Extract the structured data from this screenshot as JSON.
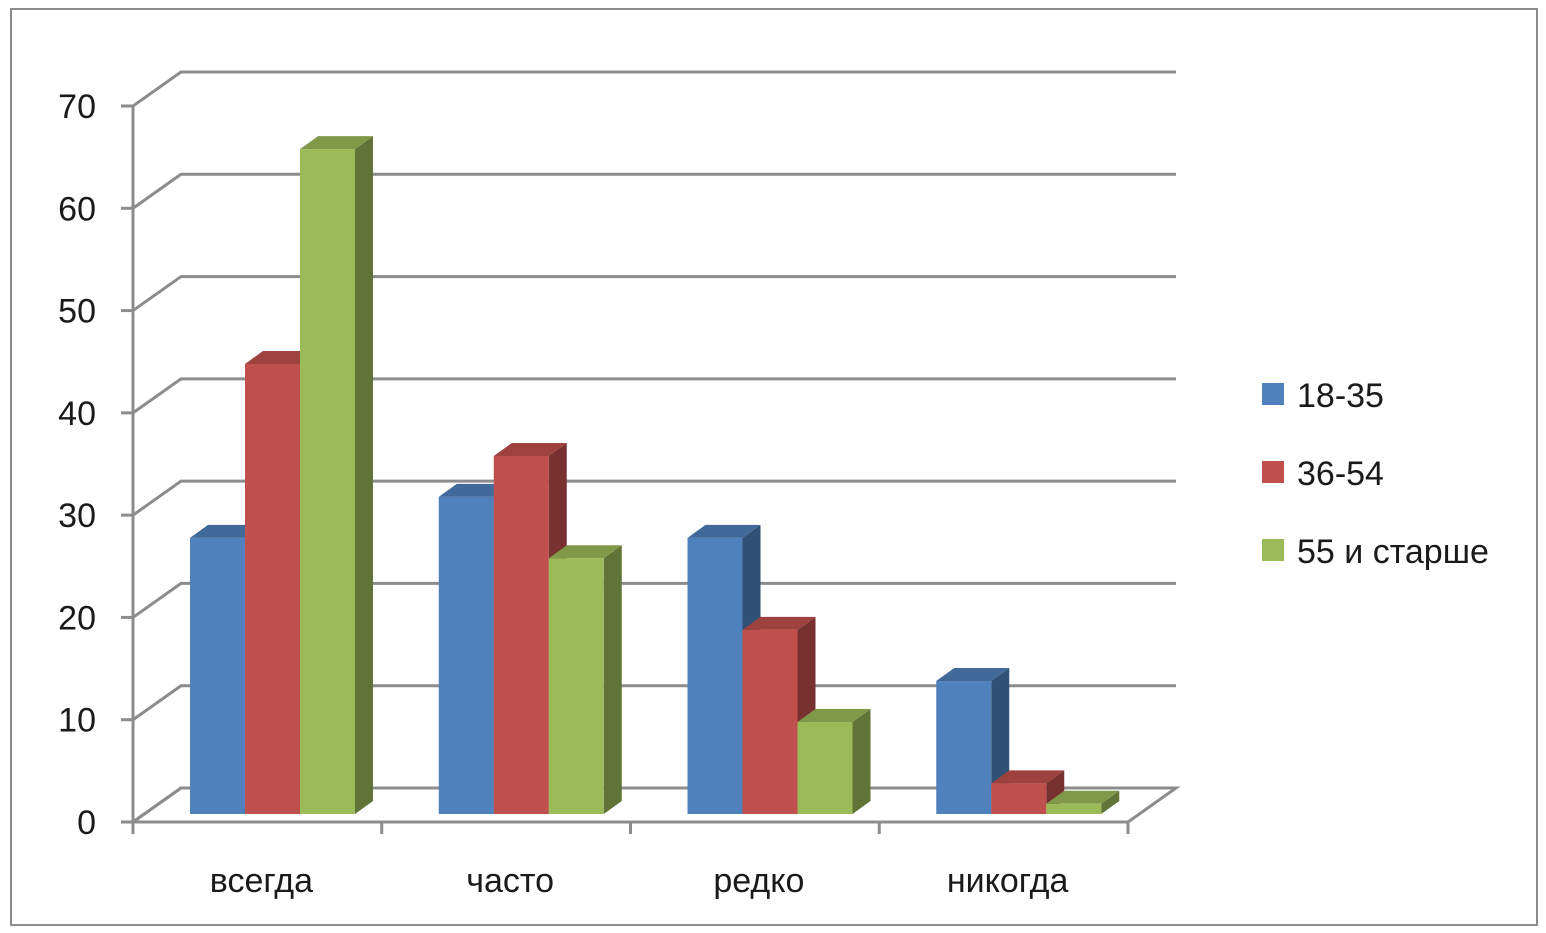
{
  "chart_data": {
    "type": "bar",
    "style": "3d-clustered-column",
    "categories": [
      "всегда",
      "часто",
      "редко",
      "никогда"
    ],
    "series": [
      {
        "name": "18-35",
        "values": [
          27,
          31,
          27,
          13
        ],
        "color": "#4f81bd"
      },
      {
        "name": "36-54",
        "values": [
          44,
          35,
          18,
          3
        ],
        "color": "#c0504d"
      },
      {
        "name": "55 и старше",
        "values": [
          65,
          25,
          9,
          1
        ],
        "color": "#9bbb59"
      }
    ],
    "ylim": [
      0,
      70
    ],
    "yticks": [
      0,
      10,
      20,
      30,
      40,
      50,
      60,
      70
    ],
    "grid": true,
    "legend": "right"
  }
}
